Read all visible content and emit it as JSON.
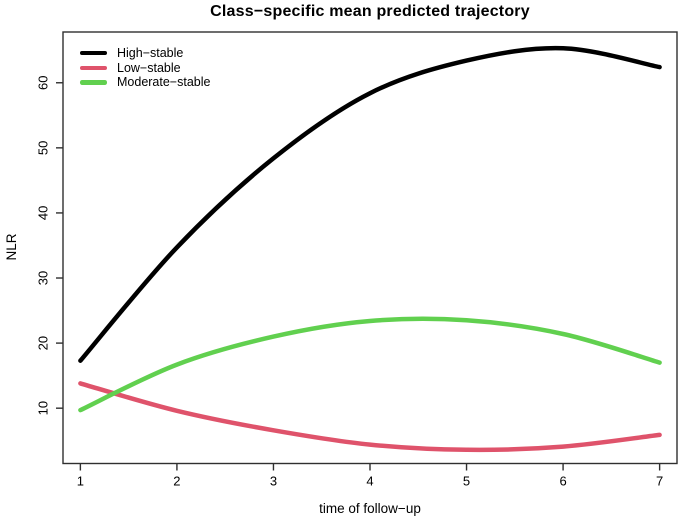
{
  "chart_data": {
    "type": "line",
    "title": "Class−specific mean predicted trajectory",
    "xlabel": "time of follow−up",
    "ylabel": "NLR",
    "x": [
      1,
      2,
      3,
      4,
      5,
      6,
      7
    ],
    "x_ticks": [
      "1",
      "2",
      "3",
      "4",
      "5",
      "6",
      "7"
    ],
    "y_ticks": [
      "10",
      "20",
      "30",
      "40",
      "50",
      "60"
    ],
    "xlim": [
      0.82,
      7.18
    ],
    "ylim": [
      1.5,
      67.8
    ],
    "grid": false,
    "legend_position": "top-left-inside",
    "line_width": 4.5,
    "axis_color": "#2f2f2f",
    "background_color": "#ffffff",
    "series": [
      {
        "name": "High−stable",
        "color": "#000000",
        "values": [
          17.3,
          34.7,
          48.4,
          58.4,
          63.4,
          65.3,
          62.4
        ]
      },
      {
        "name": "Low−stable",
        "color": "#DF536B",
        "values": [
          13.8,
          9.6,
          6.6,
          4.4,
          3.6,
          4.1,
          5.9
        ]
      },
      {
        "name": "Moderate−stable",
        "color": "#61D04F",
        "values": [
          9.7,
          16.7,
          21.0,
          23.4,
          23.5,
          21.4,
          17.0
        ]
      }
    ]
  }
}
